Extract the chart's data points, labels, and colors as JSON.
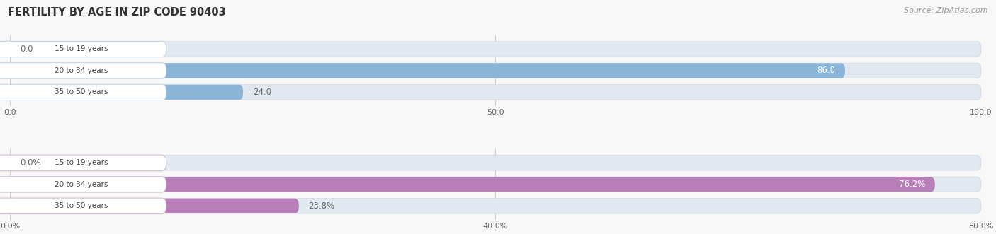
{
  "title": "FERTILITY BY AGE IN ZIP CODE 90403",
  "source": "Source: ZipAtlas.com",
  "top_chart": {
    "categories": [
      "15 to 19 years",
      "20 to 34 years",
      "35 to 50 years"
    ],
    "values": [
      0.0,
      86.0,
      24.0
    ],
    "xlim": [
      0,
      100
    ],
    "xticks": [
      0.0,
      50.0,
      100.0
    ],
    "xtick_labels": [
      "0.0",
      "50.0",
      "100.0"
    ],
    "bar_color": "#8ab4d8",
    "bg_color": "#e2e8f0",
    "pill_bg": "#ffffff",
    "pill_border": "#c8d4e4",
    "label_inside_color": "#ffffff",
    "label_outside_color": "#666666"
  },
  "bottom_chart": {
    "categories": [
      "15 to 19 years",
      "20 to 34 years",
      "35 to 50 years"
    ],
    "values": [
      0.0,
      76.2,
      23.8
    ],
    "xlim": [
      0,
      80
    ],
    "xticks": [
      0.0,
      40.0,
      80.0
    ],
    "xtick_labels": [
      "0.0%",
      "40.0%",
      "80.0%"
    ],
    "bar_color": "#b87eb8",
    "bg_color": "#e2e8f0",
    "pill_bg": "#ffffff",
    "pill_border": "#d4c0d4",
    "label_inside_color": "#ffffff",
    "label_outside_color": "#666666"
  },
  "fig_bg": "#f8f8f8",
  "figsize": [
    14.06,
    3.31
  ],
  "dpi": 100
}
